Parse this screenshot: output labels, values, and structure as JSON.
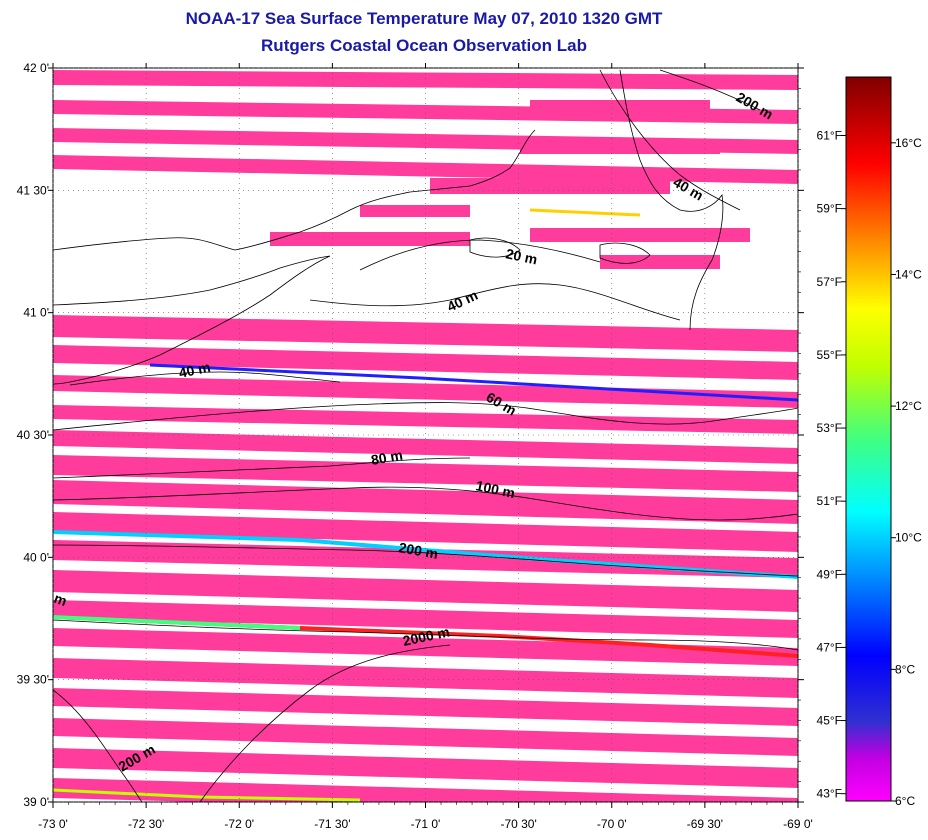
{
  "title": "NOAA-17 Sea Surface Temperature May 07, 2010 1320 GMT",
  "subtitle": "Rutgers Coastal Ocean Observation Lab",
  "colors": {
    "no_data_fill": "#ff3c9c",
    "frame": "#000000",
    "title": "#1a1aa6",
    "background": "#ffffff"
  },
  "map": {
    "lon_range": [
      -73.0,
      -69.0
    ],
    "lat_range": [
      39.0,
      42.0
    ],
    "lon_ticks": [
      "-73 0'",
      "-72 30'",
      "-72 0'",
      "-71 30'",
      "-71 0'",
      "-70 30'",
      "-70 0'",
      "-69 30'",
      "-69 0'"
    ],
    "lat_ticks": [
      "39 0'",
      "39 30'",
      "40 0'",
      "40 30'",
      "41 0'",
      "41 30'",
      "42 0'"
    ],
    "grid": "dotted",
    "contour_labels": [
      "200 m",
      "40 m",
      "20 m",
      "40 m",
      "40 m",
      "60 m",
      "80 m",
      "100 m",
      "200 m",
      "2000 m",
      "200 m",
      "m"
    ]
  },
  "colorbar": {
    "celsius_labels": [
      "6°C",
      "8°C",
      "10°C",
      "12°C",
      "14°C",
      "16°C"
    ],
    "fahrenheit_labels": [
      "43°F",
      "45°F",
      "47°F",
      "49°F",
      "51°F",
      "53°F",
      "55°F",
      "57°F",
      "59°F",
      "61°F"
    ],
    "range_c": [
      6,
      17
    ],
    "colormap": "jet"
  }
}
